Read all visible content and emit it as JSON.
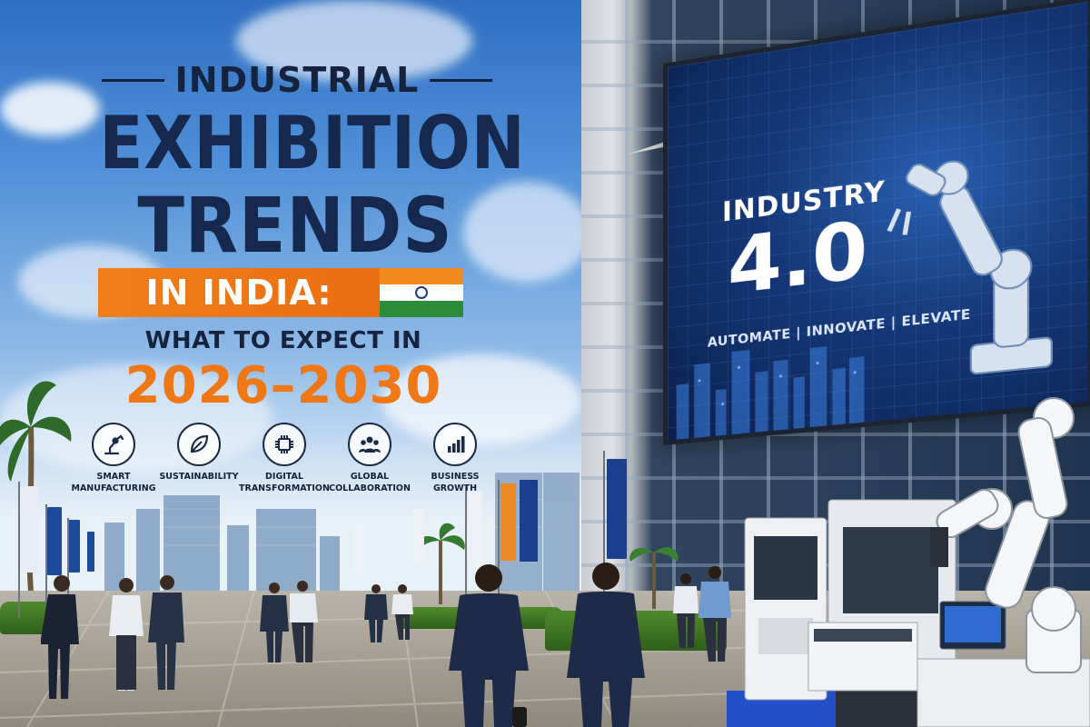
{
  "title": {
    "line1": "INDUSTRIAL",
    "line2": "EXHIBITION",
    "line3": "TRENDS",
    "line4": "IN INDIA:",
    "line5": "WHAT TO EXPECT IN",
    "line6": "2026–2030"
  },
  "billboard": {
    "line1": "INDUSTRY",
    "line2": "4.0",
    "tagline": "AUTOMATE | INNOVATE | ELEVATE"
  },
  "features": [
    {
      "icon": "robot-arm-icon",
      "label": "SMART\nMANUFACTURING"
    },
    {
      "icon": "leaf-icon",
      "label": "SUSTAINABILITY"
    },
    {
      "icon": "chip-icon",
      "label": "DIGITAL\nTRANSFORMATION"
    },
    {
      "icon": "people-icon",
      "label": "GLOBAL\nCOLLABORATION"
    },
    {
      "icon": "growth-chart-icon",
      "label": "BUSINESS\nGROWTH"
    }
  ],
  "colors": {
    "navy": "#16284d",
    "orange": "#ef7716",
    "flag_saffron": "#f28a1e",
    "flag_green": "#2d8c3a",
    "billboard_blue": "#153777"
  }
}
